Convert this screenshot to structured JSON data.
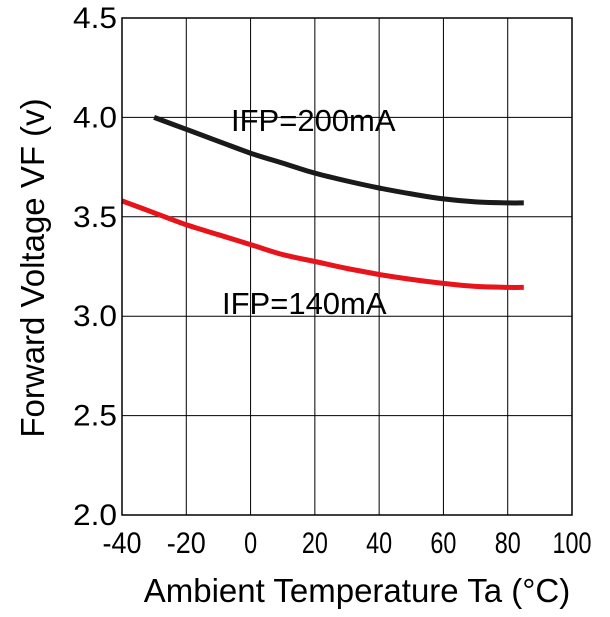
{
  "chart_data": {
    "type": "line",
    "title": "",
    "xlabel": "Ambient Temperature Ta (°C)",
    "ylabel": "Forward Voltage VF (v)",
    "xlim": [
      -40,
      100
    ],
    "ylim": [
      2.0,
      4.5
    ],
    "xticks": [
      "-40",
      "-20",
      "0",
      "20",
      "40",
      "60",
      "80",
      "100"
    ],
    "yticks": [
      "2.0",
      "2.5",
      "3.0",
      "3.5",
      "4.0",
      "4.5"
    ],
    "grid": true,
    "series": [
      {
        "name": "IFP=200mA",
        "color": "#1a1a1a",
        "x": [
          -30,
          -20,
          -10,
          0,
          10,
          20,
          30,
          40,
          50,
          60,
          70,
          80,
          85
        ],
        "y": [
          4.0,
          3.94,
          3.88,
          3.82,
          3.77,
          3.72,
          3.68,
          3.645,
          3.615,
          3.59,
          3.575,
          3.57,
          3.57
        ]
      },
      {
        "name": "IFP=140mA",
        "color": "#e8141b",
        "x": [
          -40,
          -30,
          -20,
          -10,
          0,
          10,
          20,
          30,
          40,
          50,
          60,
          70,
          80,
          85
        ],
        "y": [
          3.58,
          3.52,
          3.46,
          3.41,
          3.36,
          3.31,
          3.275,
          3.24,
          3.21,
          3.185,
          3.165,
          3.15,
          3.145,
          3.145
        ]
      }
    ],
    "annotations": [
      "IFP=200mA",
      "IFP=140mA"
    ]
  }
}
